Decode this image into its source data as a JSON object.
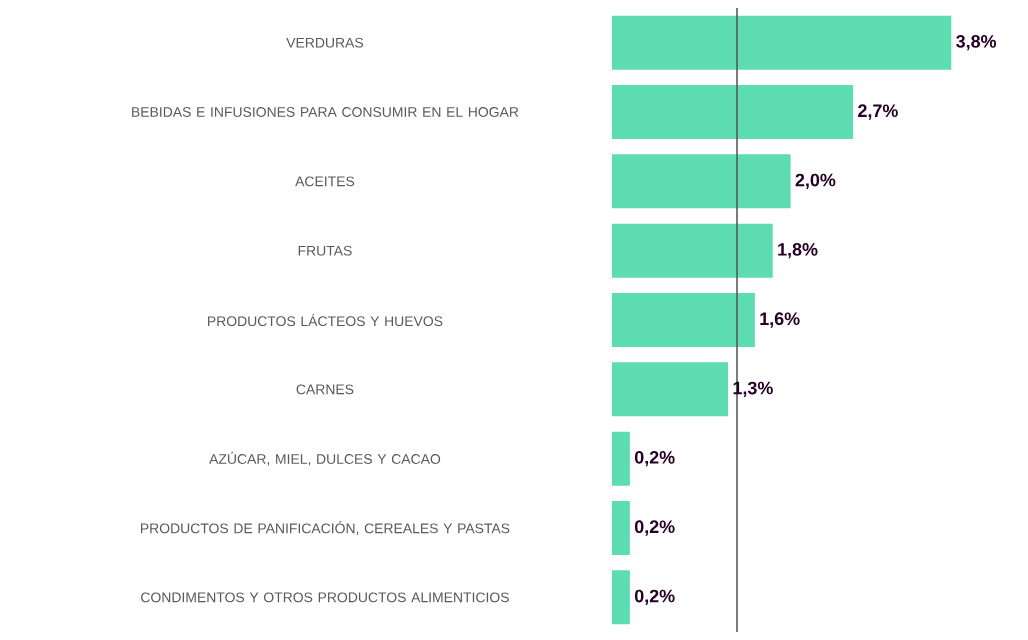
{
  "chart_data": {
    "type": "bar",
    "orientation": "horizontal",
    "categories": [
      "VERDURAS",
      "BEBIDAS E INFUSIONES PARA CONSUMIR EN EL HOGAR",
      "ACEITES",
      "FRUTAS",
      "PRODUCTOS LÁCTEOS Y HUEVOS",
      "CARNES",
      "AZÚCAR, MIEL, DULCES Y CACAO",
      "PRODUCTOS DE PANIFICACIÓN, CEREALES Y PASTAS",
      "CONDIMENTOS Y OTROS PRODUCTOS ALIMENTICIOS"
    ],
    "values": [
      3.8,
      2.7,
      2.0,
      1.8,
      1.6,
      1.3,
      0.2,
      0.2,
      0.2
    ],
    "value_labels": [
      "3,8%",
      "2,7%",
      "2,0%",
      "1,8%",
      "1,6%",
      "1,3%",
      "0,2%",
      "0,2%",
      "0,2%"
    ],
    "color": "#5cdcb0",
    "ref_lines": [
      {
        "axis": "x",
        "value": 1.4,
        "color": "#595959"
      }
    ]
  }
}
